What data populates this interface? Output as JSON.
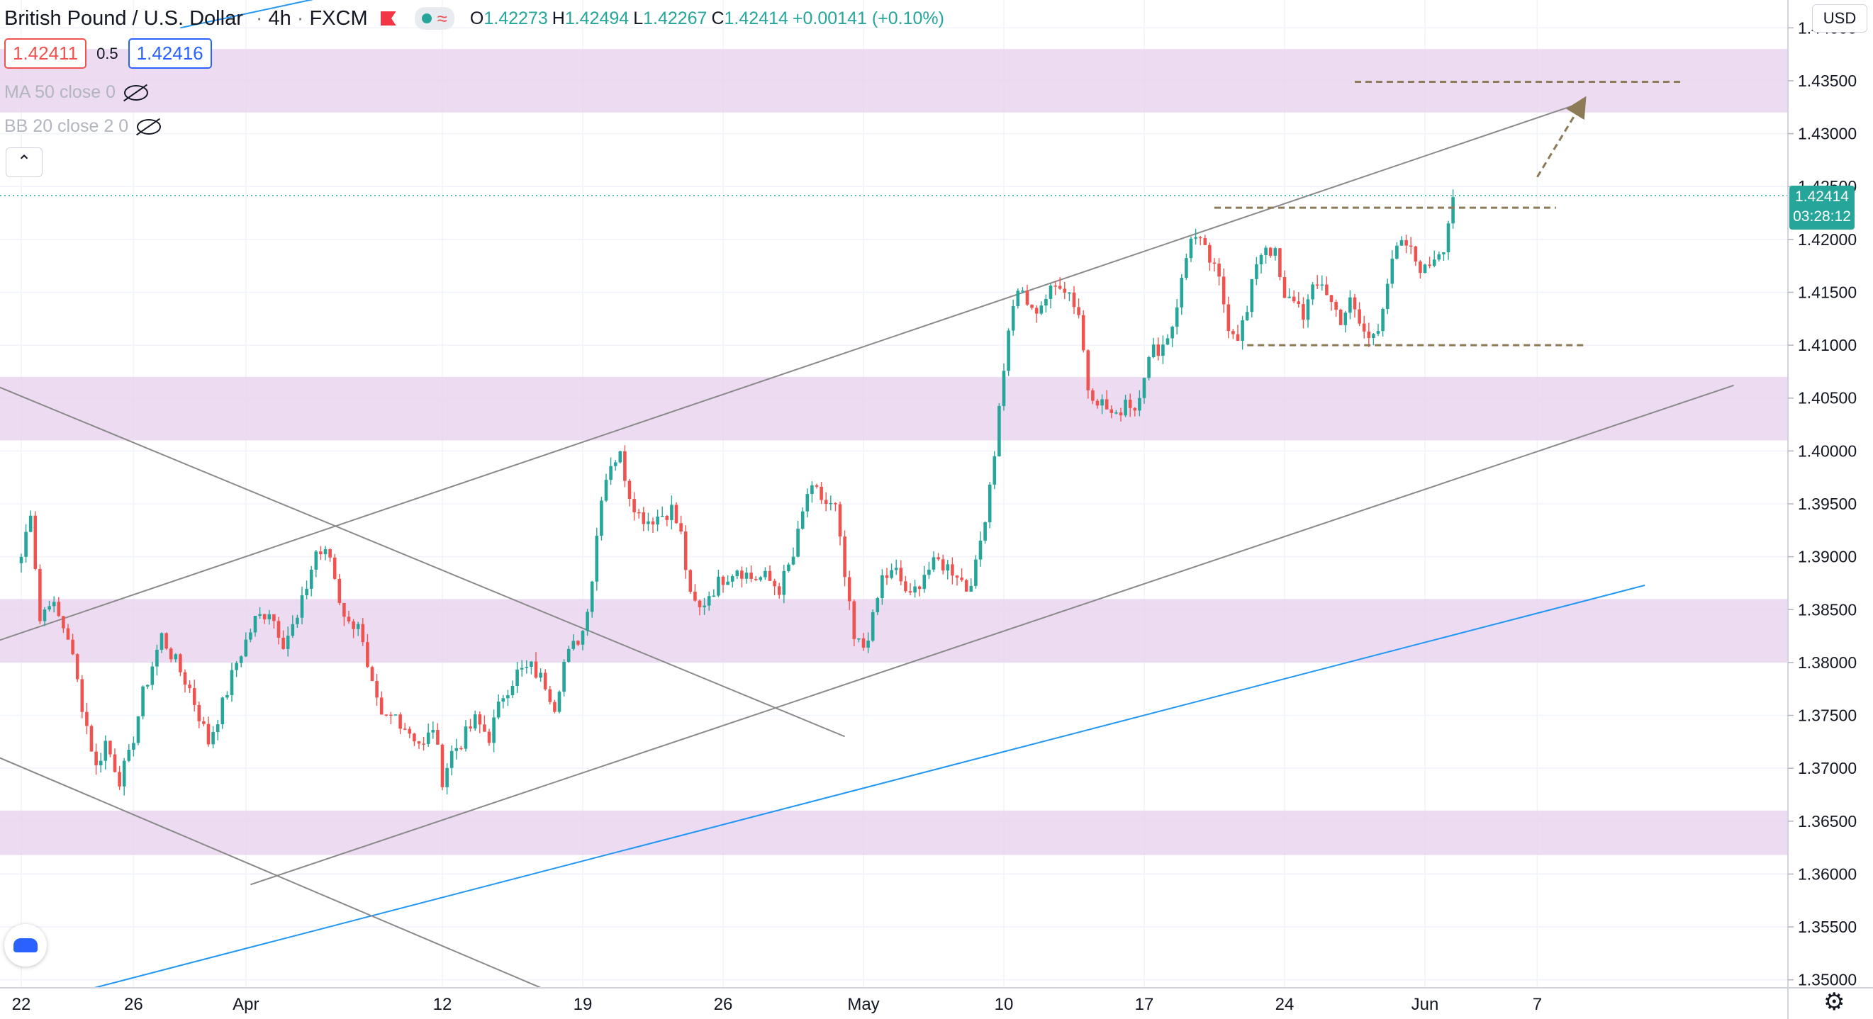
{
  "header": {
    "symbol": "British Pound / U.S. Dollar",
    "interval": "4h",
    "exchange": "FXCM",
    "open_label": "O",
    "open": "1.42273",
    "high_label": "H",
    "high": "1.42494",
    "low_label": "L",
    "low": "1.42267",
    "close_label": "C",
    "close": "1.42414",
    "change": "+0.00141 (+0.10%)"
  },
  "quote": {
    "bid": "1.42411",
    "spread": "0.5",
    "ask": "1.42416"
  },
  "indicators": [
    {
      "label": "MA 50 close 0"
    },
    {
      "label": "BB 20 close 2 0"
    }
  ],
  "currency_button": "USD",
  "price_label": {
    "price": "1.42414",
    "countdown": "03:28:12"
  },
  "colors": {
    "up": "#26a69a",
    "down": "#ef5350",
    "zone": "#e9d5ee",
    "trend_gray": "#8a8a8a",
    "trend_blue": "#2196f3",
    "dashed_level": "#8d7a56"
  },
  "chart_data": {
    "type": "candlestick",
    "ylim": [
      1.3475,
      1.4425
    ],
    "y_ticks": [
      "1.35000",
      "1.35500",
      "1.36000",
      "1.36500",
      "1.37000",
      "1.37500",
      "1.38000",
      "1.38500",
      "1.39000",
      "1.39500",
      "1.40000",
      "1.40500",
      "1.41000",
      "1.41500",
      "1.42000",
      "1.42500",
      "1.43000",
      "1.43500",
      "1.44000"
    ],
    "x_ticks": [
      {
        "label": "22",
        "bar": 0
      },
      {
        "label": "26",
        "bar": 24
      },
      {
        "label": "Apr",
        "bar": 48
      },
      {
        "label": "12",
        "bar": 90
      },
      {
        "label": "19",
        "bar": 120
      },
      {
        "label": "26",
        "bar": 150
      },
      {
        "label": "May",
        "bar": 180
      },
      {
        "label": "10",
        "bar": 210
      },
      {
        "label": "17",
        "bar": 240
      },
      {
        "label": "24",
        "bar": 270
      },
      {
        "label": "Jun",
        "bar": 300
      },
      {
        "label": "7",
        "bar": 324
      }
    ],
    "total_bars": 360,
    "anchors": [
      [
        0,
        1.39
      ],
      [
        2,
        1.3945
      ],
      [
        4,
        1.384
      ],
      [
        6,
        1.386
      ],
      [
        10,
        1.3825
      ],
      [
        13,
        1.376
      ],
      [
        16,
        1.37
      ],
      [
        18,
        1.3725
      ],
      [
        21,
        1.369
      ],
      [
        23,
        1.371
      ],
      [
        26,
        1.377
      ],
      [
        30,
        1.3825
      ],
      [
        33,
        1.38
      ],
      [
        36,
        1.3775
      ],
      [
        40,
        1.3725
      ],
      [
        43,
        1.376
      ],
      [
        46,
        1.38
      ],
      [
        50,
        1.384
      ],
      [
        53,
        1.385
      ],
      [
        56,
        1.382
      ],
      [
        59,
        1.384
      ],
      [
        63,
        1.3905
      ],
      [
        66,
        1.39
      ],
      [
        68,
        1.386
      ],
      [
        70,
        1.3835
      ],
      [
        72,
        1.384
      ],
      [
        74,
        1.379
      ],
      [
        77,
        1.3745
      ],
      [
        80,
        1.375
      ],
      [
        83,
        1.3735
      ],
      [
        86,
        1.372
      ],
      [
        88,
        1.374
      ],
      [
        90,
        1.369
      ],
      [
        92,
        1.3715
      ],
      [
        94,
        1.3725
      ],
      [
        97,
        1.3745
      ],
      [
        100,
        1.373
      ],
      [
        103,
        1.377
      ],
      [
        106,
        1.379
      ],
      [
        109,
        1.3795
      ],
      [
        112,
        1.378
      ],
      [
        114,
        1.376
      ],
      [
        116,
        1.38
      ],
      [
        118,
        1.3815
      ],
      [
        120,
        1.383
      ],
      [
        122,
        1.388
      ],
      [
        124,
        1.396
      ],
      [
        126,
        1.399
      ],
      [
        128,
        1.3995
      ],
      [
        130,
        1.396
      ],
      [
        132,
        1.394
      ],
      [
        134,
        1.3935
      ],
      [
        137,
        1.394
      ],
      [
        139,
        1.3945
      ],
      [
        141,
        1.392
      ],
      [
        143,
        1.386
      ],
      [
        145,
        1.385
      ],
      [
        147,
        1.3865
      ],
      [
        150,
        1.388
      ],
      [
        153,
        1.389
      ],
      [
        156,
        1.388
      ],
      [
        159,
        1.388
      ],
      [
        162,
        1.387
      ],
      [
        165,
        1.39
      ],
      [
        168,
        1.396
      ],
      [
        170,
        1.396
      ],
      [
        172,
        1.395
      ],
      [
        174,
        1.3945
      ],
      [
        176,
        1.388
      ],
      [
        178,
        1.382
      ],
      [
        180,
        1.3815
      ],
      [
        182,
        1.384
      ],
      [
        184,
        1.388
      ],
      [
        187,
        1.3885
      ],
      [
        190,
        1.386
      ],
      [
        193,
        1.3885
      ],
      [
        196,
        1.3895
      ],
      [
        198,
        1.389
      ],
      [
        200,
        1.3885
      ],
      [
        202,
        1.387
      ],
      [
        204,
        1.389
      ],
      [
        206,
        1.394
      ],
      [
        208,
        1.4
      ],
      [
        210,
        1.408
      ],
      [
        212,
        1.414
      ],
      [
        214,
        1.415
      ],
      [
        216,
        1.413
      ],
      [
        218,
        1.414
      ],
      [
        220,
        1.415
      ],
      [
        222,
        1.416
      ],
      [
        224,
        1.415
      ],
      [
        226,
        1.413
      ],
      [
        228,
        1.406
      ],
      [
        230,
        1.405
      ],
      [
        232,
        1.404
      ],
      [
        234,
        1.403
      ],
      [
        236,
        1.405
      ],
      [
        238,
        1.404
      ],
      [
        240,
        1.4075
      ],
      [
        242,
        1.4095
      ],
      [
        244,
        1.41
      ],
      [
        246,
        1.412
      ],
      [
        248,
        1.416
      ],
      [
        250,
        1.4205
      ],
      [
        252,
        1.4195
      ],
      [
        254,
        1.418
      ],
      [
        256,
        1.416
      ],
      [
        258,
        1.412
      ],
      [
        260,
        1.411
      ],
      [
        262,
        1.413
      ],
      [
        264,
        1.418
      ],
      [
        266,
        1.4195
      ],
      [
        268,
        1.4185
      ],
      [
        270,
        1.414
      ],
      [
        272,
        1.4145
      ],
      [
        274,
        1.413
      ],
      [
        276,
        1.415
      ],
      [
        278,
        1.416
      ],
      [
        280,
        1.414
      ],
      [
        282,
        1.4125
      ],
      [
        284,
        1.414
      ],
      [
        286,
        1.412
      ],
      [
        288,
        1.4105
      ],
      [
        290,
        1.412
      ],
      [
        292,
        1.416
      ],
      [
        294,
        1.419
      ],
      [
        296,
        1.4195
      ],
      [
        298,
        1.418
      ],
      [
        300,
        1.417
      ],
      [
        302,
        1.4185
      ],
      [
        304,
        1.4195
      ],
      [
        306,
        1.424
      ]
    ],
    "zones": [
      [
        1.432,
        1.438
      ],
      [
        1.401,
        1.407
      ],
      [
        1.38,
        1.386
      ],
      [
        1.3618,
        1.366
      ]
    ],
    "dashed_levels": [
      {
        "price": 1.4349,
        "from_bar": 285,
        "to_bar": 355
      },
      {
        "price": 1.423,
        "from_bar": 255,
        "to_bar": 328
      },
      {
        "price": 1.41,
        "from_bar": 262,
        "to_bar": 334
      }
    ],
    "trendlines": [
      {
        "color": "blue",
        "from": [
          -10,
          1.3463
        ],
        "to": [
          347,
          1.3873
        ]
      },
      {
        "color": "blue",
        "from": [
          34,
          1.44
        ],
        "to": [
          114,
          1.4476
        ]
      },
      {
        "color": "gray",
        "from": [
          -10,
          1.3813
        ],
        "to": [
          334,
          1.433
        ]
      },
      {
        "color": "gray",
        "from": [
          49,
          1.359
        ],
        "to": [
          366,
          1.4062
        ]
      },
      {
        "color": "gray",
        "from": [
          -10,
          1.407
        ],
        "to": [
          176,
          1.373
        ]
      },
      {
        "color": "gray",
        "from": [
          -10,
          1.372
        ],
        "to": [
          123,
          1.347
        ]
      }
    ],
    "projection": {
      "from": [
        324,
        1.4259
      ],
      "to": [
        334,
        1.4332
      ]
    }
  }
}
